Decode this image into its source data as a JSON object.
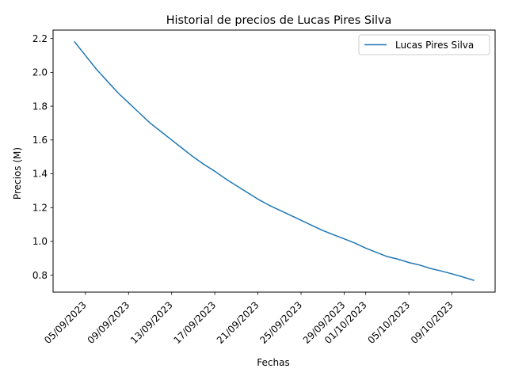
{
  "chart_data": {
    "type": "line",
    "title": "Historial de precios de Lucas Pires Silva",
    "xlabel": "Fechas",
    "ylabel": "Precios (M)",
    "ylim": [
      0.7,
      2.25
    ],
    "yticks": [
      0.8,
      1.0,
      1.2,
      1.4,
      1.6,
      1.8,
      2.0,
      2.2
    ],
    "ytick_labels": [
      "0.8",
      "1.0",
      "1.2",
      "1.4",
      "1.6",
      "1.8",
      "2.0",
      "2.2"
    ],
    "xlim": [
      "2023-09-02",
      "2023-10-13"
    ],
    "xticks": [
      "2023-09-05",
      "2023-09-09",
      "2023-09-13",
      "2023-09-17",
      "2023-09-21",
      "2023-09-25",
      "2023-09-29",
      "2023-10-01",
      "2023-10-05",
      "2023-10-09"
    ],
    "xtick_labels": [
      "05/09/2023",
      "09/09/2023",
      "13/09/2023",
      "17/09/2023",
      "21/09/2023",
      "25/09/2023",
      "29/09/2023",
      "01/10/2023",
      "05/10/2023",
      "09/10/2023"
    ],
    "grid": false,
    "legend_position": "upper right",
    "series": [
      {
        "name": "Lucas Pires Silva",
        "color": "#1f77b4",
        "x": [
          "2023-09-04",
          "2023-09-05",
          "2023-09-06",
          "2023-09-07",
          "2023-09-08",
          "2023-09-09",
          "2023-09-10",
          "2023-09-11",
          "2023-09-12",
          "2023-09-13",
          "2023-09-14",
          "2023-09-15",
          "2023-09-16",
          "2023-09-17",
          "2023-09-18",
          "2023-09-19",
          "2023-09-20",
          "2023-09-21",
          "2023-09-22",
          "2023-09-23",
          "2023-09-24",
          "2023-09-25",
          "2023-09-26",
          "2023-09-27",
          "2023-09-28",
          "2023-09-29",
          "2023-09-30",
          "2023-10-01",
          "2023-10-02",
          "2023-10-03",
          "2023-10-04",
          "2023-10-05",
          "2023-10-06",
          "2023-10-07",
          "2023-10-08",
          "2023-10-09",
          "2023-10-10",
          "2023-10-11"
        ],
        "values": [
          2.18,
          2.1,
          2.02,
          1.95,
          1.88,
          1.82,
          1.76,
          1.7,
          1.65,
          1.6,
          1.55,
          1.5,
          1.455,
          1.415,
          1.37,
          1.33,
          1.29,
          1.25,
          1.215,
          1.185,
          1.155,
          1.125,
          1.095,
          1.065,
          1.04,
          1.015,
          0.99,
          0.96,
          0.935,
          0.91,
          0.895,
          0.875,
          0.86,
          0.84,
          0.825,
          0.808,
          0.79,
          0.77
        ]
      }
    ]
  }
}
